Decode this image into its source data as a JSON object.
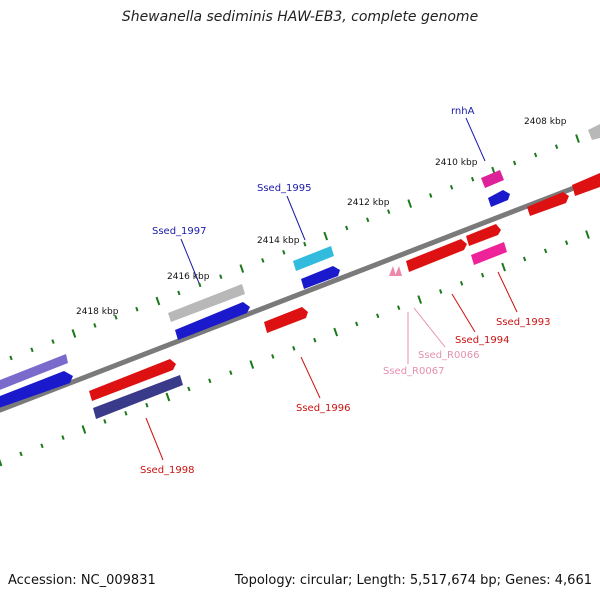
{
  "title": "Shewanella sediminis HAW-EB3, complete genome",
  "footer": {
    "accession": "Accession: NC_009831",
    "stats": "Topology: circular; Length: 5,517,674 bp; Genes: 4,661"
  },
  "colors": {
    "backbone": "#808080",
    "tick": "#1a7a1a",
    "label_blue": "#1a1aaa",
    "label_red": "#cc1111",
    "label_pink": "#e78fb0"
  },
  "kbp_labels": [
    "2408 kbp",
    "2410 kbp",
    "2412 kbp",
    "2414 kbp",
    "2416 kbp",
    "2418 kbp"
  ],
  "gene_labels": [
    "rnhA",
    "Ssed_1995",
    "Ssed_1997",
    "Ssed_1993",
    "Ssed_1994",
    "Ssed_R0066",
    "Ssed_R0067",
    "Ssed_1996",
    "Ssed_1998"
  ]
}
